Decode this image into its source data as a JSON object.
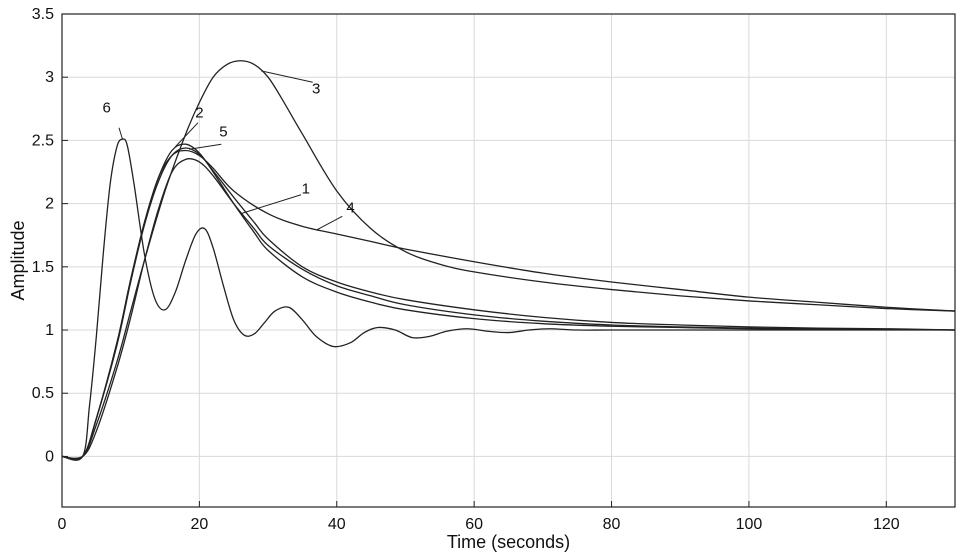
{
  "chart_data": {
    "type": "line",
    "xlabel": "Time (seconds)",
    "ylabel": "Amplitude",
    "xlim": [
      0,
      130
    ],
    "ylim": [
      -0.4,
      3.5
    ],
    "xticks": [
      0,
      20,
      40,
      60,
      80,
      100,
      120
    ],
    "yticks": [
      0,
      0.5,
      1,
      1.5,
      2,
      2.5,
      3,
      3.5
    ],
    "xtick_labels": [
      "0",
      "20",
      "40",
      "60",
      "80",
      "100",
      "120"
    ],
    "ytick_labels": [
      "0",
      "0.5",
      "1",
      "1.5",
      "2",
      "2.5",
      "3",
      "3.5"
    ],
    "grid": true,
    "line_color": "#222222",
    "grid_color": "#d9d9d9",
    "series": [
      {
        "name": "1",
        "x": [
          0,
          3,
          5,
          8,
          10,
          12,
          14,
          16,
          18,
          20,
          22,
          25,
          28,
          30,
          35,
          40,
          45,
          50,
          60,
          70,
          80,
          90,
          100,
          110,
          120,
          130
        ],
        "y": [
          0,
          0,
          0.2,
          0.7,
          1.1,
          1.55,
          1.95,
          2.25,
          2.35,
          2.33,
          2.22,
          2.0,
          1.8,
          1.67,
          1.48,
          1.35,
          1.27,
          1.2,
          1.12,
          1.07,
          1.04,
          1.025,
          1.015,
          1.01,
          1.005,
          1.0
        ]
      },
      {
        "name": "2",
        "x": [
          0,
          3,
          5,
          8,
          10,
          12,
          14,
          16,
          18,
          20,
          22,
          25,
          28,
          30,
          35,
          40,
          45,
          50,
          60,
          70,
          80,
          90,
          100,
          110,
          120,
          130
        ],
        "y": [
          0,
          0,
          0.3,
          0.9,
          1.4,
          1.85,
          2.2,
          2.42,
          2.47,
          2.4,
          2.25,
          2.0,
          1.77,
          1.63,
          1.42,
          1.3,
          1.22,
          1.16,
          1.09,
          1.05,
          1.03,
          1.02,
          1.01,
          1.005,
          1.003,
          1.0
        ]
      },
      {
        "name": "3",
        "x": [
          0,
          3,
          5,
          8,
          10,
          12,
          15,
          18,
          20,
          22,
          24,
          26,
          28,
          30,
          32,
          35,
          40,
          45,
          50,
          55,
          60,
          70,
          80,
          90,
          100,
          110,
          120,
          130
        ],
        "y": [
          0,
          0,
          0.25,
          0.75,
          1.15,
          1.55,
          2.1,
          2.55,
          2.8,
          3.0,
          3.1,
          3.13,
          3.1,
          3.0,
          2.83,
          2.55,
          2.1,
          1.8,
          1.62,
          1.52,
          1.46,
          1.38,
          1.32,
          1.27,
          1.23,
          1.2,
          1.17,
          1.15
        ]
      },
      {
        "name": "4",
        "x": [
          0,
          3,
          5,
          8,
          10,
          12,
          14,
          16,
          18,
          20,
          22,
          25,
          30,
          35,
          40,
          45,
          50,
          60,
          70,
          80,
          90,
          100,
          110,
          120,
          130
        ],
        "y": [
          0,
          0,
          0.3,
          0.9,
          1.4,
          1.85,
          2.2,
          2.38,
          2.42,
          2.38,
          2.28,
          2.1,
          1.92,
          1.82,
          1.76,
          1.7,
          1.64,
          1.54,
          1.45,
          1.38,
          1.32,
          1.26,
          1.22,
          1.18,
          1.15
        ]
      },
      {
        "name": "5",
        "x": [
          0,
          3,
          5,
          8,
          10,
          12,
          14,
          16,
          18,
          20,
          22,
          25,
          28,
          30,
          35,
          40,
          45,
          50,
          60,
          70,
          80,
          90,
          100,
          110,
          120,
          130
        ],
        "y": [
          0,
          0,
          0.3,
          0.88,
          1.38,
          1.83,
          2.17,
          2.38,
          2.44,
          2.39,
          2.26,
          2.05,
          1.85,
          1.72,
          1.5,
          1.38,
          1.3,
          1.24,
          1.16,
          1.1,
          1.06,
          1.04,
          1.025,
          1.015,
          1.01,
          1.0
        ]
      },
      {
        "name": "6",
        "x": [
          0,
          3,
          4,
          5,
          6,
          7,
          8,
          8.8,
          9.5,
          10.5,
          12,
          13.5,
          15,
          16.5,
          18,
          19.5,
          20.8,
          22,
          23.5,
          25,
          26.5,
          28,
          29.5,
          31,
          33,
          35,
          37,
          39.5,
          42,
          44,
          46,
          48.5,
          51,
          53.5,
          56,
          59,
          62,
          65,
          68,
          71,
          75,
          80,
          90,
          100,
          110,
          120,
          130
        ],
        "y": [
          0,
          0,
          0.4,
          0.95,
          1.6,
          2.15,
          2.45,
          2.51,
          2.46,
          2.15,
          1.6,
          1.25,
          1.16,
          1.3,
          1.55,
          1.76,
          1.8,
          1.65,
          1.35,
          1.08,
          0.96,
          0.97,
          1.06,
          1.15,
          1.18,
          1.08,
          0.95,
          0.87,
          0.9,
          0.98,
          1.02,
          1.0,
          0.94,
          0.95,
          0.99,
          1.01,
          0.99,
          0.98,
          1.0,
          1.01,
          1.0,
          1.0,
          1.0,
          1.0,
          1.0,
          1.0,
          1.0
        ]
      }
    ]
  }
}
